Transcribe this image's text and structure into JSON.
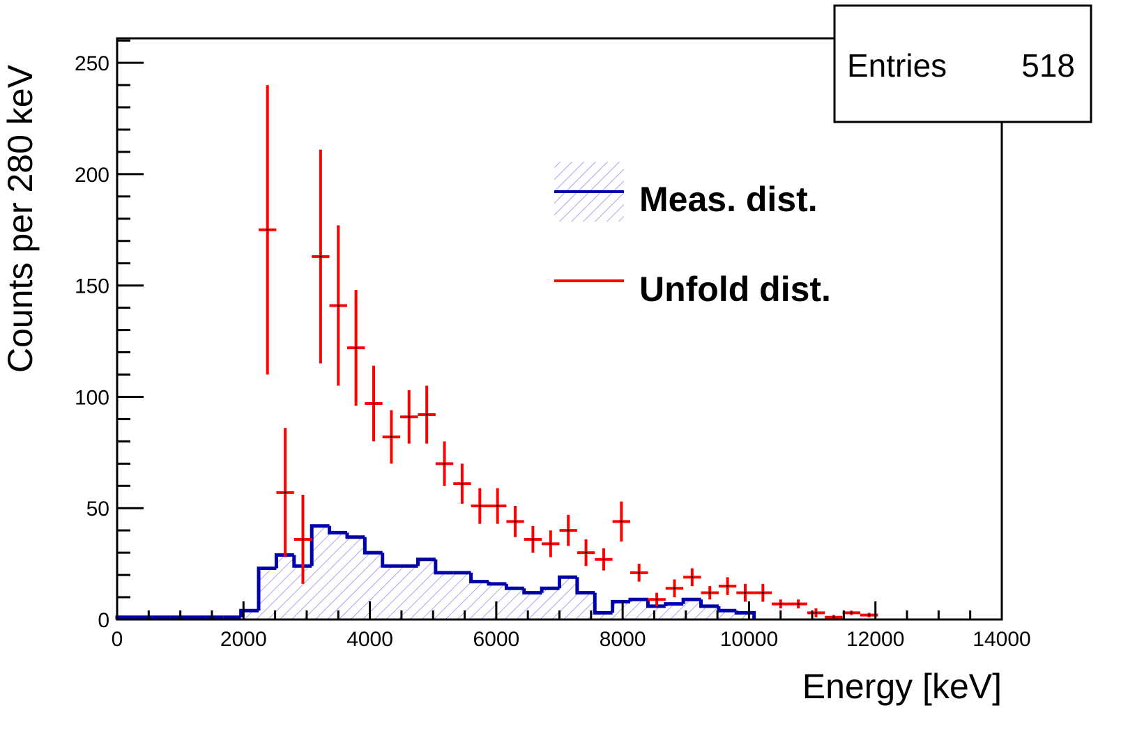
{
  "chart_data": {
    "type": "bar",
    "title": "",
    "xlabel": "Energy [keV]",
    "ylabel": "Counts per 280 keV",
    "xlim": [
      0,
      14000
    ],
    "ylim": [
      0,
      261
    ],
    "xticks": [
      0,
      2000,
      4000,
      6000,
      8000,
      10000,
      12000,
      14000
    ],
    "yticks": [
      0,
      50,
      100,
      150,
      200,
      250
    ],
    "grid": false,
    "legend_placement": "top-right",
    "stats_box": {
      "label": "Entries",
      "value": "518"
    },
    "bin_width": 280,
    "series": [
      {
        "name": "Meas. dist.",
        "kind": "histogram",
        "color": "#0000aa",
        "hatch": "diagonal",
        "bin_edges_start": [
          0,
          280,
          560,
          840,
          1120,
          1400,
          1680,
          1960,
          2240,
          2520,
          2800,
          3080,
          3360,
          3640,
          3920,
          4200,
          4480,
          4760,
          5040,
          5320,
          5600,
          5880,
          6160,
          6440,
          6720,
          7000,
          7280,
          7560,
          7840,
          8120,
          8400,
          8680,
          8960,
          9240,
          9520,
          9800
        ],
        "values": [
          1,
          1,
          1,
          1,
          1,
          1,
          1,
          4,
          23,
          29,
          24,
          42,
          39,
          37,
          30,
          24,
          24,
          27,
          21,
          21,
          17,
          16,
          14,
          12,
          14,
          19,
          12,
          3,
          8,
          9,
          6,
          7,
          9,
          6,
          4,
          3
        ]
      },
      {
        "name": "Unfold dist.",
        "kind": "errorbar",
        "color": "#ff0000",
        "x": [
          2380,
          2660,
          2940,
          3220,
          3500,
          3780,
          4060,
          4340,
          4620,
          4900,
          5180,
          5460,
          5740,
          6020,
          6300,
          6580,
          6860,
          7140,
          7420,
          7700,
          7980,
          8260,
          8540,
          8820,
          9100,
          9380,
          9660,
          9940,
          10220,
          10500,
          10780,
          11060,
          11340,
          11620,
          11900
        ],
        "values": [
          175,
          57,
          36,
          163,
          141,
          122,
          97,
          82,
          91,
          92,
          70,
          61,
          51,
          51,
          44,
          36,
          34,
          40,
          30,
          27,
          44,
          21,
          9,
          14,
          19,
          12,
          15,
          12,
          12,
          7,
          7,
          3,
          1,
          3,
          2
        ],
        "errors": [
          65,
          29,
          20,
          48,
          36,
          26,
          17,
          12,
          12,
          13,
          10,
          9,
          8,
          8,
          7,
          6,
          6,
          7,
          6,
          5,
          9,
          4,
          3,
          4,
          4,
          3,
          4,
          4,
          4,
          2,
          2,
          2,
          1,
          1,
          1
        ]
      }
    ]
  }
}
